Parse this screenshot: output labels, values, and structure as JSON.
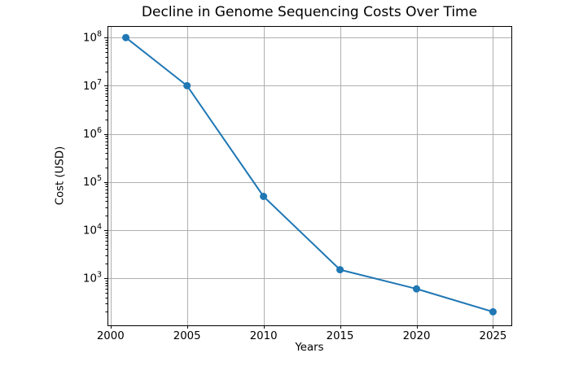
{
  "figure": {
    "title": "Decline in Genome Sequencing Costs Over Time",
    "xlabel": "Years",
    "ylabel": "Cost (USD)"
  },
  "chart_data": {
    "type": "line",
    "title": "Decline in Genome Sequencing Costs Over Time",
    "xlabel": "Years",
    "ylabel": "Cost (USD)",
    "x": [
      2001,
      2005,
      2010,
      2015,
      2020,
      2025
    ],
    "y": [
      100000000,
      10000000,
      50000,
      1500,
      600,
      200
    ],
    "yscale": "log",
    "xlim": [
      1999.8,
      2026.2
    ],
    "ylim_log10": [
      2.02,
      8.24
    ],
    "xticks": [
      2000,
      2005,
      2010,
      2015,
      2020,
      2025
    ],
    "xtick_labels": [
      "2000",
      "2005",
      "2010",
      "2015",
      "2020",
      "2025"
    ],
    "ytick_exponents": [
      3,
      4,
      5,
      6,
      7,
      8
    ],
    "ytick_base": "10",
    "grid": true,
    "legend": false,
    "marker": "circle",
    "line_color": "#1f77b4",
    "grid_color": "#b0b0b0",
    "spine_color": "#000000",
    "background_color": "#ffffff"
  }
}
